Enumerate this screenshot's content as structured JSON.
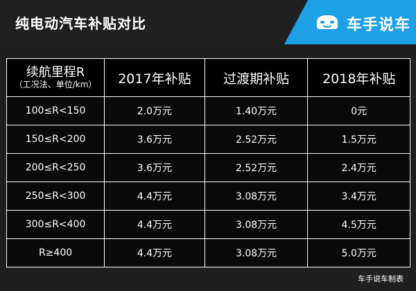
{
  "header": {
    "title": "纯电动汽车补贴对比",
    "brand_name": "车手说车",
    "brand_color": "#1ea0e6",
    "logo_icon": "car-face-icon"
  },
  "table": {
    "columns": [
      {
        "label": "续航里程R",
        "sublabel": "（工况法、单位/km）"
      },
      {
        "label": "2017年补贴"
      },
      {
        "label": "过渡期补贴"
      },
      {
        "label": "2018年补贴"
      }
    ],
    "rows": [
      [
        "100≤R<150",
        "2.0万元",
        "1.40万元",
        "0元"
      ],
      [
        "150≤R<200",
        "3.6万元",
        "2.52万元",
        "1.5万元"
      ],
      [
        "200≤R<250",
        "3.6万元",
        "2.52万元",
        "2.4万元"
      ],
      [
        "250≤R<300",
        "4.4万元",
        "3.08万元",
        "3.4万元"
      ],
      [
        "300≤R<400",
        "4.4万元",
        "3.08万元",
        "4.5万元"
      ],
      [
        "R≥400",
        "4.4万元",
        "3.08万元",
        "5.0万元"
      ]
    ]
  },
  "footer": {
    "credit": "车手说车制表"
  }
}
